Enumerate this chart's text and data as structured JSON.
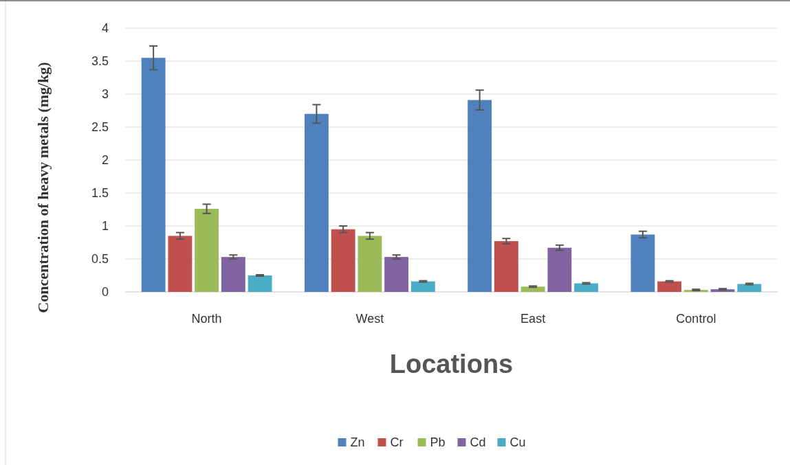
{
  "chart_data": {
    "type": "bar",
    "xlabel": "Locations",
    "ylabel": "Concentration of heavy metals (mg/kg)",
    "categories": [
      "North",
      "West",
      "East",
      "Control"
    ],
    "series": [
      {
        "name": "Zn",
        "color": "#4f81bd",
        "values": [
          3.55,
          2.7,
          2.91,
          0.87
        ],
        "errors": [
          0.18,
          0.14,
          0.15,
          0.05
        ]
      },
      {
        "name": "Cr",
        "color": "#c0504d",
        "values": [
          0.85,
          0.95,
          0.77,
          0.16
        ],
        "errors": [
          0.05,
          0.05,
          0.04,
          0.01
        ]
      },
      {
        "name": "Pb",
        "color": "#9bbb59",
        "values": [
          1.26,
          0.85,
          0.08,
          0.03
        ],
        "errors": [
          0.07,
          0.05,
          0.01,
          0.01
        ]
      },
      {
        "name": "Cd",
        "color": "#8064a2",
        "values": [
          0.53,
          0.53,
          0.67,
          0.04
        ],
        "errors": [
          0.03,
          0.03,
          0.04,
          0.01
        ]
      },
      {
        "name": "Cu",
        "color": "#4bacc6",
        "values": [
          0.25,
          0.16,
          0.13,
          0.12
        ],
        "errors": [
          0.01,
          0.01,
          0.01,
          0.01
        ]
      }
    ],
    "ylim": [
      0,
      4
    ],
    "yticks": [
      0,
      0.5,
      1,
      1.5,
      2,
      2.5,
      3,
      3.5,
      4
    ],
    "grid": "y",
    "legend": "bottom"
  }
}
